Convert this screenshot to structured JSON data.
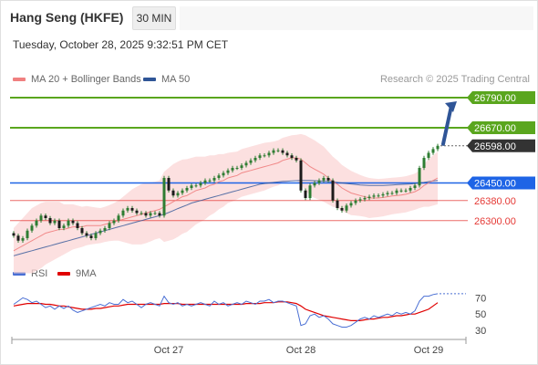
{
  "header": {
    "title": "Hang Seng (HKFE)",
    "timeframe": "30 MIN",
    "datetime": "Tuesday, October 28, 2025 9:32:51 PM CET"
  },
  "legend": {
    "ma20": "MA 20 + Bollinger Bands",
    "ma50": "MA 50",
    "credit": "Research © 2025 Trading Central"
  },
  "colors": {
    "ma20": "#f08080",
    "ma50": "#2f5597",
    "bands": "#fbd6d6",
    "candle": "#2e7d32",
    "resistance": "#5aa61e",
    "support": "#e53935",
    "pivot": "#1e64e6",
    "last": "#333333",
    "rsi": "#4a6fd4",
    "rsi_ma": "#e00000",
    "arrow": "#2f5597"
  },
  "chart_data": [
    {
      "type": "candlestick",
      "name": "price",
      "ylim": [
        26150,
        26830
      ],
      "x_labels": [
        "Oct 27",
        "Oct 28",
        "Oct 29"
      ],
      "levels": [
        {
          "value": 26790.0,
          "label": "26790.00",
          "kind": "resistance"
        },
        {
          "value": 26670.0,
          "label": "26670.00",
          "kind": "resistance"
        },
        {
          "value": 26598.0,
          "label": "26598.00",
          "kind": "last"
        },
        {
          "value": 26450.0,
          "label": "26450.00",
          "kind": "pivot"
        },
        {
          "value": 26380.0,
          "label": "26380.00",
          "kind": "support"
        },
        {
          "value": 26300.0,
          "label": "26300.00",
          "kind": "support"
        }
      ],
      "close": [
        26240,
        26220,
        26230,
        26260,
        26280,
        26300,
        26320,
        26310,
        26290,
        26300,
        26270,
        26280,
        26300,
        26290,
        26270,
        26250,
        26240,
        26230,
        26250,
        26260,
        26270,
        26290,
        26300,
        26320,
        26340,
        26350,
        26340,
        26330,
        26330,
        26320,
        26330,
        26330,
        26320,
        26470,
        26420,
        26400,
        26410,
        26420,
        26430,
        26440,
        26440,
        26450,
        26460,
        26460,
        26470,
        26480,
        26490,
        26500,
        26510,
        26510,
        26520,
        26530,
        26540,
        26550,
        26560,
        26560,
        26570,
        26580,
        26580,
        26570,
        26560,
        26550,
        26540,
        26420,
        26390,
        26440,
        26450,
        26460,
        26470,
        26460,
        26380,
        26350,
        26340,
        26360,
        26370,
        26380,
        26385,
        26390,
        26395,
        26400,
        26400,
        26405,
        26410,
        26410,
        26420,
        26420,
        26420,
        26430,
        26440,
        26510,
        26550,
        26570,
        26585,
        26598
      ],
      "ma20": [
        26180,
        26190,
        26200,
        26210,
        26220,
        26230,
        26240,
        26250,
        26255,
        26260,
        26265,
        26265,
        26270,
        26275,
        26275,
        26275,
        26280,
        26280,
        26280,
        26280,
        26285,
        26290,
        26295,
        26300,
        26305,
        26310,
        26315,
        26320,
        26325,
        26330,
        26335,
        26340,
        26345,
        26355,
        26365,
        26375,
        26385,
        26395,
        26400,
        26410,
        26420,
        26425,
        26430,
        26440,
        26445,
        26455,
        26460,
        26470,
        26475,
        26480,
        26490,
        26495,
        26500,
        26505,
        26510,
        26515,
        26520,
        26525,
        26530,
        26540,
        26545,
        26550,
        26550,
        26545,
        26530,
        26515,
        26505,
        26495,
        26485,
        26470,
        26455,
        26445,
        26430,
        26420,
        26410,
        26405,
        26400,
        26395,
        26390,
        26390,
        26390,
        26392,
        26395,
        26398,
        26400,
        26402,
        26405,
        26410,
        26415,
        26425,
        26440,
        26450,
        26460,
        26470
      ],
      "ma50": [
        26160,
        26165,
        26170,
        26175,
        26180,
        26185,
        26190,
        26195,
        26200,
        26205,
        26210,
        26215,
        26220,
        26225,
        26230,
        26235,
        26240,
        26245,
        26250,
        26255,
        26260,
        26265,
        26270,
        26275,
        26280,
        26285,
        26290,
        26295,
        26300,
        26305,
        26310,
        26315,
        26320,
        26325,
        26332,
        26340,
        26348,
        26355,
        26362,
        26370,
        26375,
        26380,
        26385,
        26390,
        26395,
        26400,
        26405,
        26410,
        26415,
        26420,
        26425,
        26430,
        26435,
        26440,
        26445,
        26448,
        26450,
        26452,
        26454,
        26456,
        26457,
        26458,
        26459,
        26460,
        26460,
        26460,
        26459,
        26458,
        26457,
        26456,
        26454,
        26452,
        26450,
        26448,
        26446,
        26444,
        26442,
        26441,
        26440,
        26440,
        26440,
        26440,
        26441,
        26442,
        26443,
        26444,
        26445,
        26446,
        26448,
        26450,
        26452,
        26455,
        26458,
        26460
      ],
      "band_width": [
        90,
        100,
        110,
        120,
        130,
        130,
        130,
        125,
        120,
        115,
        110,
        100,
        95,
        90,
        85,
        80,
        78,
        75,
        72,
        70,
        70,
        72,
        75,
        80,
        90,
        100,
        110,
        115,
        120,
        120,
        118,
        115,
        115,
        140,
        145,
        150,
        150,
        148,
        145,
        140,
        135,
        130,
        125,
        120,
        115,
        110,
        105,
        100,
        98,
        95,
        95,
        95,
        95,
        95,
        95,
        95,
        92,
        90,
        90,
        90,
        90,
        90,
        92,
        100,
        110,
        115,
        115,
        112,
        110,
        105,
        100,
        95,
        92,
        90,
        88,
        85,
        82,
        80,
        80,
        78,
        76,
        75,
        74,
        73,
        72,
        72,
        72,
        72,
        72,
        75,
        85,
        95,
        100,
        105
      ]
    },
    {
      "type": "line",
      "name": "rsi",
      "series_names": [
        "RSI",
        "9MA"
      ],
      "ylim": [
        20,
        85
      ],
      "y_ticks": [
        70,
        50,
        30
      ],
      "rsi": [
        62,
        66,
        70,
        68,
        64,
        66,
        62,
        58,
        60,
        56,
        60,
        57,
        60,
        55,
        52,
        54,
        56,
        58,
        60,
        62,
        60,
        64,
        62,
        62,
        68,
        64,
        66,
        62,
        58,
        62,
        64,
        62,
        60,
        72,
        64,
        62,
        64,
        60,
        62,
        60,
        62,
        64,
        62,
        60,
        66,
        62,
        64,
        60,
        62,
        64,
        62,
        66,
        64,
        62,
        66,
        66,
        68,
        64,
        66,
        66,
        64,
        62,
        60,
        36,
        38,
        48,
        50,
        46,
        48,
        44,
        38,
        36,
        34,
        34,
        36,
        40,
        44,
        46,
        44,
        48,
        46,
        48,
        50,
        48,
        52,
        50,
        52,
        50,
        54,
        66,
        72,
        72,
        74,
        75
      ],
      "rsi_ma": [
        60,
        61,
        62,
        63,
        63,
        63,
        63,
        62,
        62,
        61,
        60,
        60,
        59,
        58,
        57,
        56,
        56,
        56,
        57,
        57,
        58,
        59,
        60,
        60,
        61,
        62,
        62,
        62,
        62,
        62,
        62,
        62,
        62,
        63,
        63,
        63,
        63,
        62,
        62,
        62,
        62,
        62,
        62,
        62,
        62,
        62,
        62,
        62,
        62,
        62,
        62,
        63,
        63,
        63,
        63,
        64,
        64,
        64,
        65,
        65,
        65,
        64,
        63,
        60,
        56,
        54,
        52,
        50,
        48,
        47,
        46,
        45,
        44,
        43,
        42,
        42,
        42,
        43,
        44,
        44,
        45,
        46,
        46,
        47,
        48,
        48,
        49,
        50,
        50,
        52,
        54,
        56,
        60,
        64
      ],
      "rsi_projection": [
        75,
        75
      ]
    }
  ]
}
